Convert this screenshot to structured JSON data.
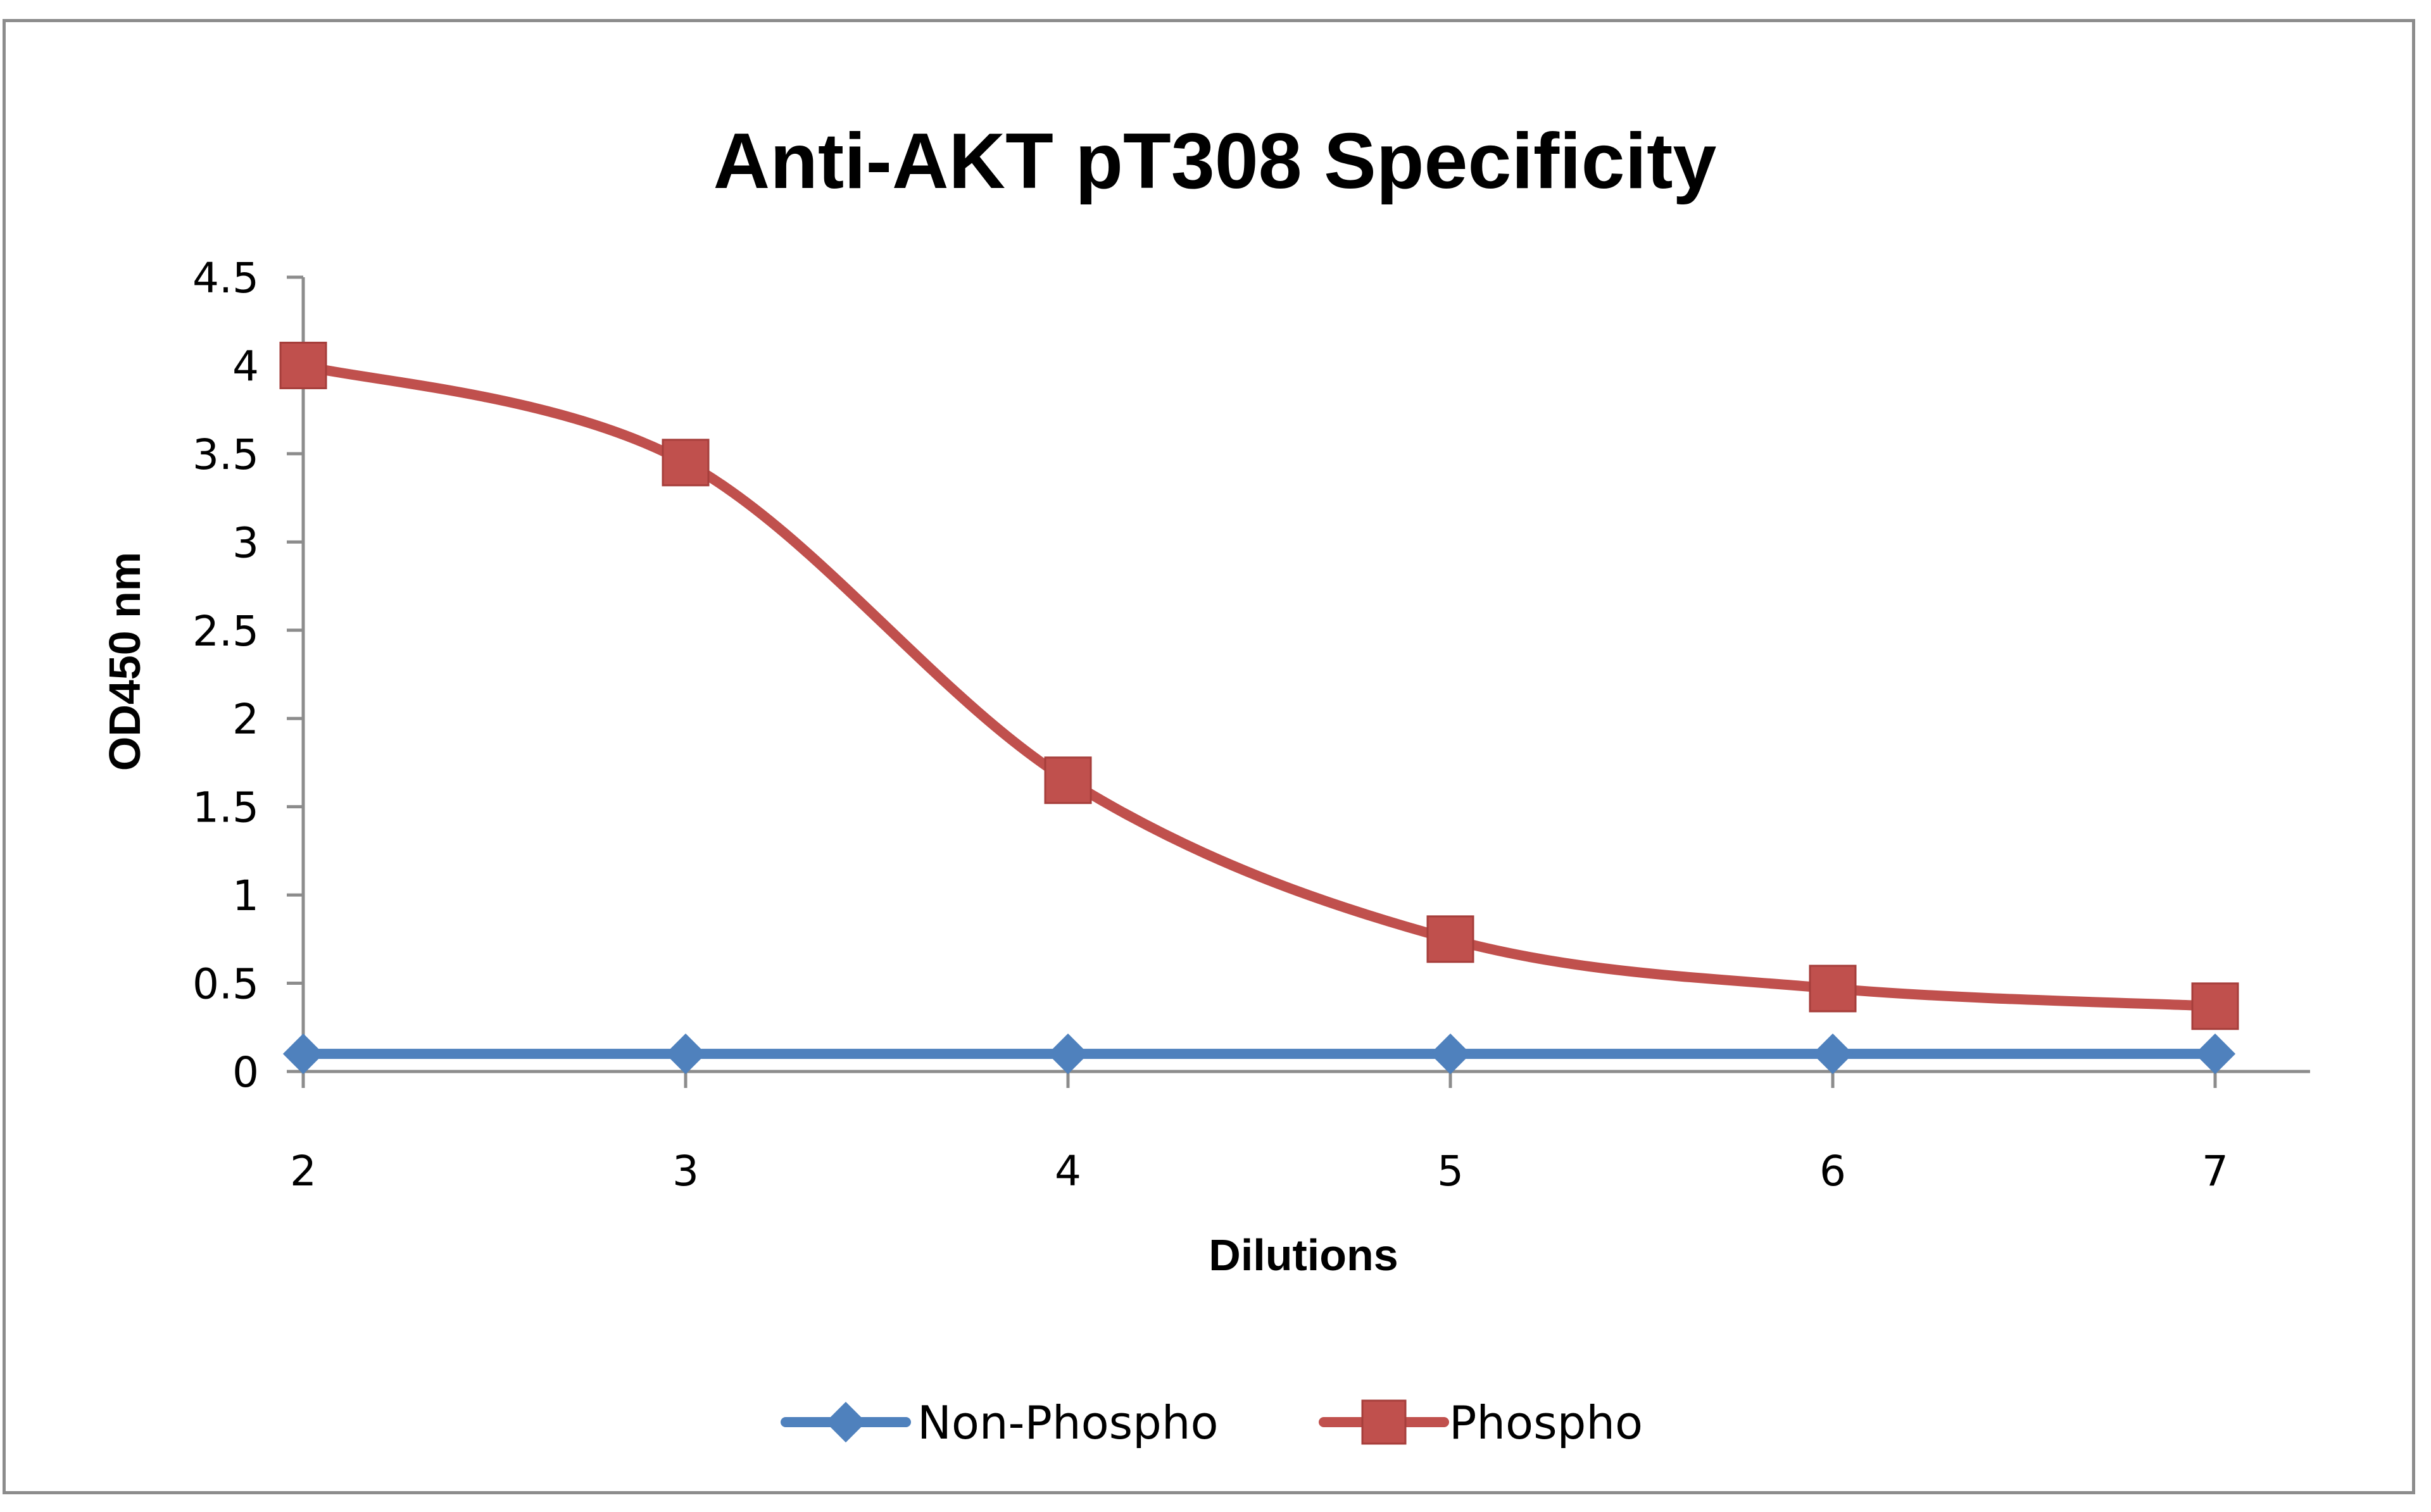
{
  "chart_data": {
    "type": "line",
    "title": "Anti-AKT pT308 Specificity",
    "xlabel": "Dilutions",
    "ylabel": "OD450 nm",
    "x": [
      2,
      3,
      4,
      5,
      6,
      7
    ],
    "ylim": [
      0,
      4.5
    ],
    "yticks": [
      "0",
      "0.5",
      "1",
      "1.5",
      "2",
      "2.5",
      "3",
      "3.5",
      "4",
      "4.5"
    ],
    "xticks": [
      "2",
      "3",
      "4",
      "5",
      "6",
      "7"
    ],
    "grid": false,
    "legend_position": "bottom",
    "smooth": true,
    "series": [
      {
        "name": "Non-Phospho",
        "values": [
          0.1,
          0.1,
          0.1,
          0.1,
          0.1,
          0.1
        ],
        "color": "#4f81bd",
        "marker": "diamond"
      },
      {
        "name": "Phospho",
        "values": [
          4.0,
          3.45,
          1.65,
          0.75,
          0.47,
          0.37
        ],
        "color": "#c0504d",
        "marker": "square"
      }
    ]
  }
}
